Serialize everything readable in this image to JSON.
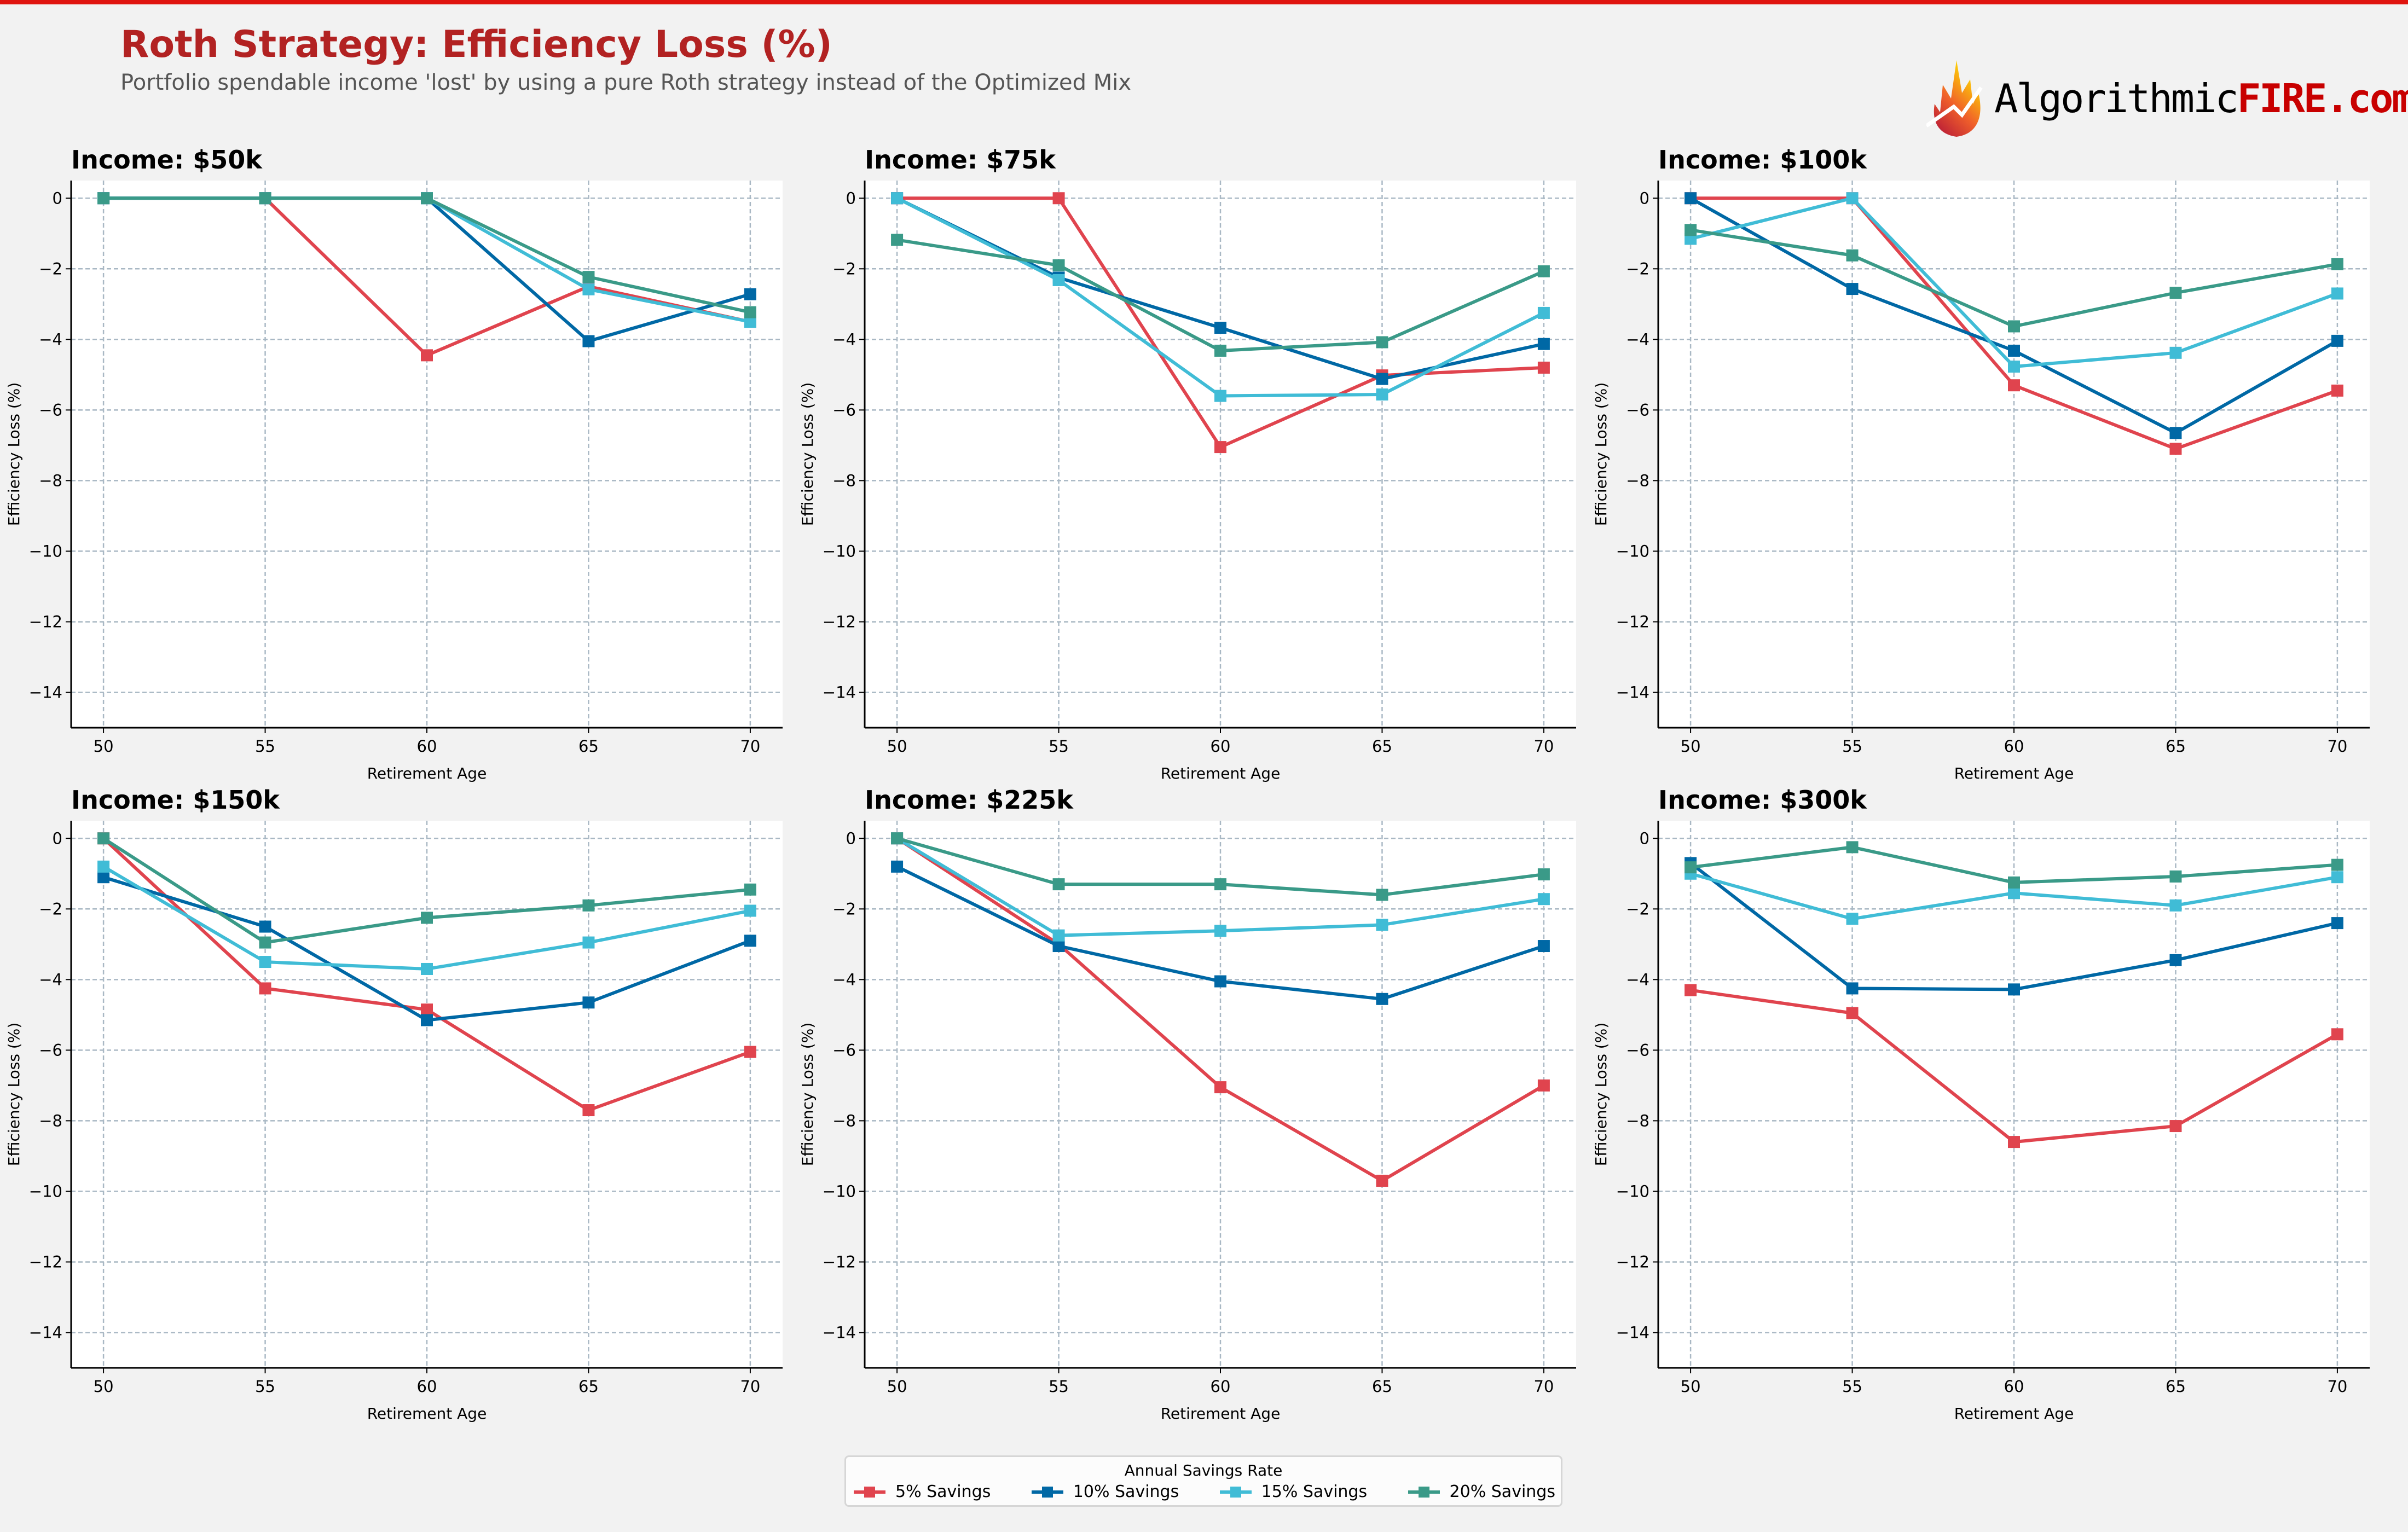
{
  "header": {
    "title": "Roth Strategy: Efficiency Loss (%)",
    "subtitle": "Portfolio spendable income 'lost' by using a pure Roth strategy instead of the Optimized Mix",
    "logo_text_black": "Algorithmic",
    "logo_text_red": "FIRE.com",
    "accent_color": "#e0140f",
    "title_color": "#b22222"
  },
  "legend": {
    "title": "Annual Savings Rate",
    "placement": "bottom-center",
    "items": [
      {
        "label": "5% Savings",
        "color": "#e0444e"
      },
      {
        "label": "10% Savings",
        "color": "#0068a5"
      },
      {
        "label": "15% Savings",
        "color": "#40bcd6"
      },
      {
        "label": "20% Savings",
        "color": "#3a9a88"
      }
    ]
  },
  "chart_data": [
    {
      "type": "line",
      "title": "Income: $50k",
      "xlabel": "Retirement Age",
      "ylabel": "Efficiency Loss (%)",
      "x": [
        50,
        55,
        60,
        65,
        70
      ],
      "xlim": [
        49,
        71
      ],
      "ylim": [
        -15,
        0.5
      ],
      "yticks": [
        0,
        -2,
        -4,
        -6,
        -8,
        -10,
        -12,
        -14
      ],
      "grid": true,
      "marker": "square",
      "series": [
        {
          "name": "5% Savings",
          "color": "#e0444e",
          "values": [
            0,
            0,
            -4.45,
            -2.5,
            -3.5
          ]
        },
        {
          "name": "10% Savings",
          "color": "#0068a5",
          "values": [
            0,
            0,
            0,
            -4.05,
            -2.72
          ]
        },
        {
          "name": "15% Savings",
          "color": "#40bcd6",
          "values": [
            0,
            0,
            0,
            -2.58,
            -3.5
          ]
        },
        {
          "name": "20% Savings",
          "color": "#3a9a88",
          "values": [
            0,
            0,
            0,
            -2.23,
            -3.23
          ]
        }
      ]
    },
    {
      "type": "line",
      "title": "Income: $75k",
      "xlabel": "Retirement Age",
      "ylabel": "Efficiency Loss (%)",
      "x": [
        50,
        55,
        60,
        65,
        70
      ],
      "xlim": [
        49,
        71
      ],
      "ylim": [
        -15,
        0.5
      ],
      "yticks": [
        0,
        -2,
        -4,
        -6,
        -8,
        -10,
        -12,
        -14
      ],
      "grid": true,
      "marker": "square",
      "series": [
        {
          "name": "5% Savings",
          "color": "#e0444e",
          "values": [
            0,
            0,
            -7.05,
            -5.02,
            -4.8
          ]
        },
        {
          "name": "10% Savings",
          "color": "#0068a5",
          "values": [
            0,
            -2.25,
            -3.67,
            -5.12,
            -4.13
          ]
        },
        {
          "name": "15% Savings",
          "color": "#40bcd6",
          "values": [
            0,
            -2.32,
            -5.6,
            -5.56,
            -3.25
          ]
        },
        {
          "name": "20% Savings",
          "color": "#3a9a88",
          "values": [
            -1.18,
            -1.9,
            -4.32,
            -4.08,
            -2.07
          ]
        }
      ]
    },
    {
      "type": "line",
      "title": "Income: $100k",
      "xlabel": "Retirement Age",
      "ylabel": "Efficiency Loss (%)",
      "x": [
        50,
        55,
        60,
        65,
        70
      ],
      "xlim": [
        49,
        71
      ],
      "ylim": [
        -15,
        0.5
      ],
      "yticks": [
        0,
        -2,
        -4,
        -6,
        -8,
        -10,
        -12,
        -14
      ],
      "grid": true,
      "marker": "square",
      "series": [
        {
          "name": "5% Savings",
          "color": "#e0444e",
          "values": [
            0,
            0,
            -5.3,
            -7.1,
            -5.45
          ]
        },
        {
          "name": "10% Savings",
          "color": "#0068a5",
          "values": [
            0,
            -2.57,
            -4.32,
            -6.65,
            -4.04
          ]
        },
        {
          "name": "15% Savings",
          "color": "#40bcd6",
          "values": [
            -1.15,
            0,
            -4.77,
            -4.38,
            -2.7
          ]
        },
        {
          "name": "20% Savings",
          "color": "#3a9a88",
          "values": [
            -0.9,
            -1.62,
            -3.63,
            -2.68,
            -1.87
          ]
        }
      ]
    },
    {
      "type": "line",
      "title": "Income: $150k",
      "xlabel": "Retirement Age",
      "ylabel": "Efficiency Loss (%)",
      "x": [
        50,
        55,
        60,
        65,
        70
      ],
      "xlim": [
        49,
        71
      ],
      "ylim": [
        -15,
        0.5
      ],
      "yticks": [
        0,
        -2,
        -4,
        -6,
        -8,
        -10,
        -12,
        -14
      ],
      "grid": true,
      "marker": "square",
      "series": [
        {
          "name": "5% Savings",
          "color": "#e0444e",
          "values": [
            0,
            -4.25,
            -4.85,
            -7.7,
            -6.05
          ]
        },
        {
          "name": "10% Savings",
          "color": "#0068a5",
          "values": [
            -1.1,
            -2.5,
            -5.15,
            -4.65,
            -2.9
          ]
        },
        {
          "name": "15% Savings",
          "color": "#40bcd6",
          "values": [
            -0.8,
            -3.5,
            -3.7,
            -2.95,
            -2.05
          ]
        },
        {
          "name": "20% Savings",
          "color": "#3a9a88",
          "values": [
            0,
            -2.95,
            -2.25,
            -1.9,
            -1.45
          ]
        }
      ]
    },
    {
      "type": "line",
      "title": "Income: $225k",
      "xlabel": "Retirement Age",
      "ylabel": "Efficiency Loss (%)",
      "x": [
        50,
        55,
        60,
        65,
        70
      ],
      "xlim": [
        49,
        71
      ],
      "ylim": [
        -15,
        0.5
      ],
      "yticks": [
        0,
        -2,
        -4,
        -6,
        -8,
        -10,
        -12,
        -14
      ],
      "grid": true,
      "marker": "square",
      "series": [
        {
          "name": "5% Savings",
          "color": "#e0444e",
          "values": [
            0,
            -3.0,
            -7.05,
            -9.7,
            -7.0
          ]
        },
        {
          "name": "10% Savings",
          "color": "#0068a5",
          "values": [
            -0.8,
            -3.05,
            -4.05,
            -4.55,
            -3.05
          ]
        },
        {
          "name": "15% Savings",
          "color": "#40bcd6",
          "values": [
            0,
            -2.75,
            -2.62,
            -2.45,
            -1.72
          ]
        },
        {
          "name": "20% Savings",
          "color": "#3a9a88",
          "values": [
            0,
            -1.3,
            -1.3,
            -1.6,
            -1.02
          ]
        }
      ]
    },
    {
      "type": "line",
      "title": "Income: $300k",
      "xlabel": "Retirement Age",
      "ylabel": "Efficiency Loss (%)",
      "x": [
        50,
        55,
        60,
        65,
        70
      ],
      "xlim": [
        49,
        71
      ],
      "ylim": [
        -15,
        0.5
      ],
      "yticks": [
        0,
        -2,
        -4,
        -6,
        -8,
        -10,
        -12,
        -14
      ],
      "grid": true,
      "marker": "square",
      "series": [
        {
          "name": "5% Savings",
          "color": "#e0444e",
          "values": [
            -4.3,
            -4.95,
            -8.6,
            -8.15,
            -5.55
          ]
        },
        {
          "name": "10% Savings",
          "color": "#0068a5",
          "values": [
            -0.7,
            -4.25,
            -4.28,
            -3.45,
            -2.4
          ]
        },
        {
          "name": "15% Savings",
          "color": "#40bcd6",
          "values": [
            -1.0,
            -2.28,
            -1.55,
            -1.9,
            -1.1
          ]
        },
        {
          "name": "20% Savings",
          "color": "#3a9a88",
          "values": [
            -0.82,
            -0.25,
            -1.25,
            -1.08,
            -0.75
          ]
        }
      ]
    }
  ]
}
